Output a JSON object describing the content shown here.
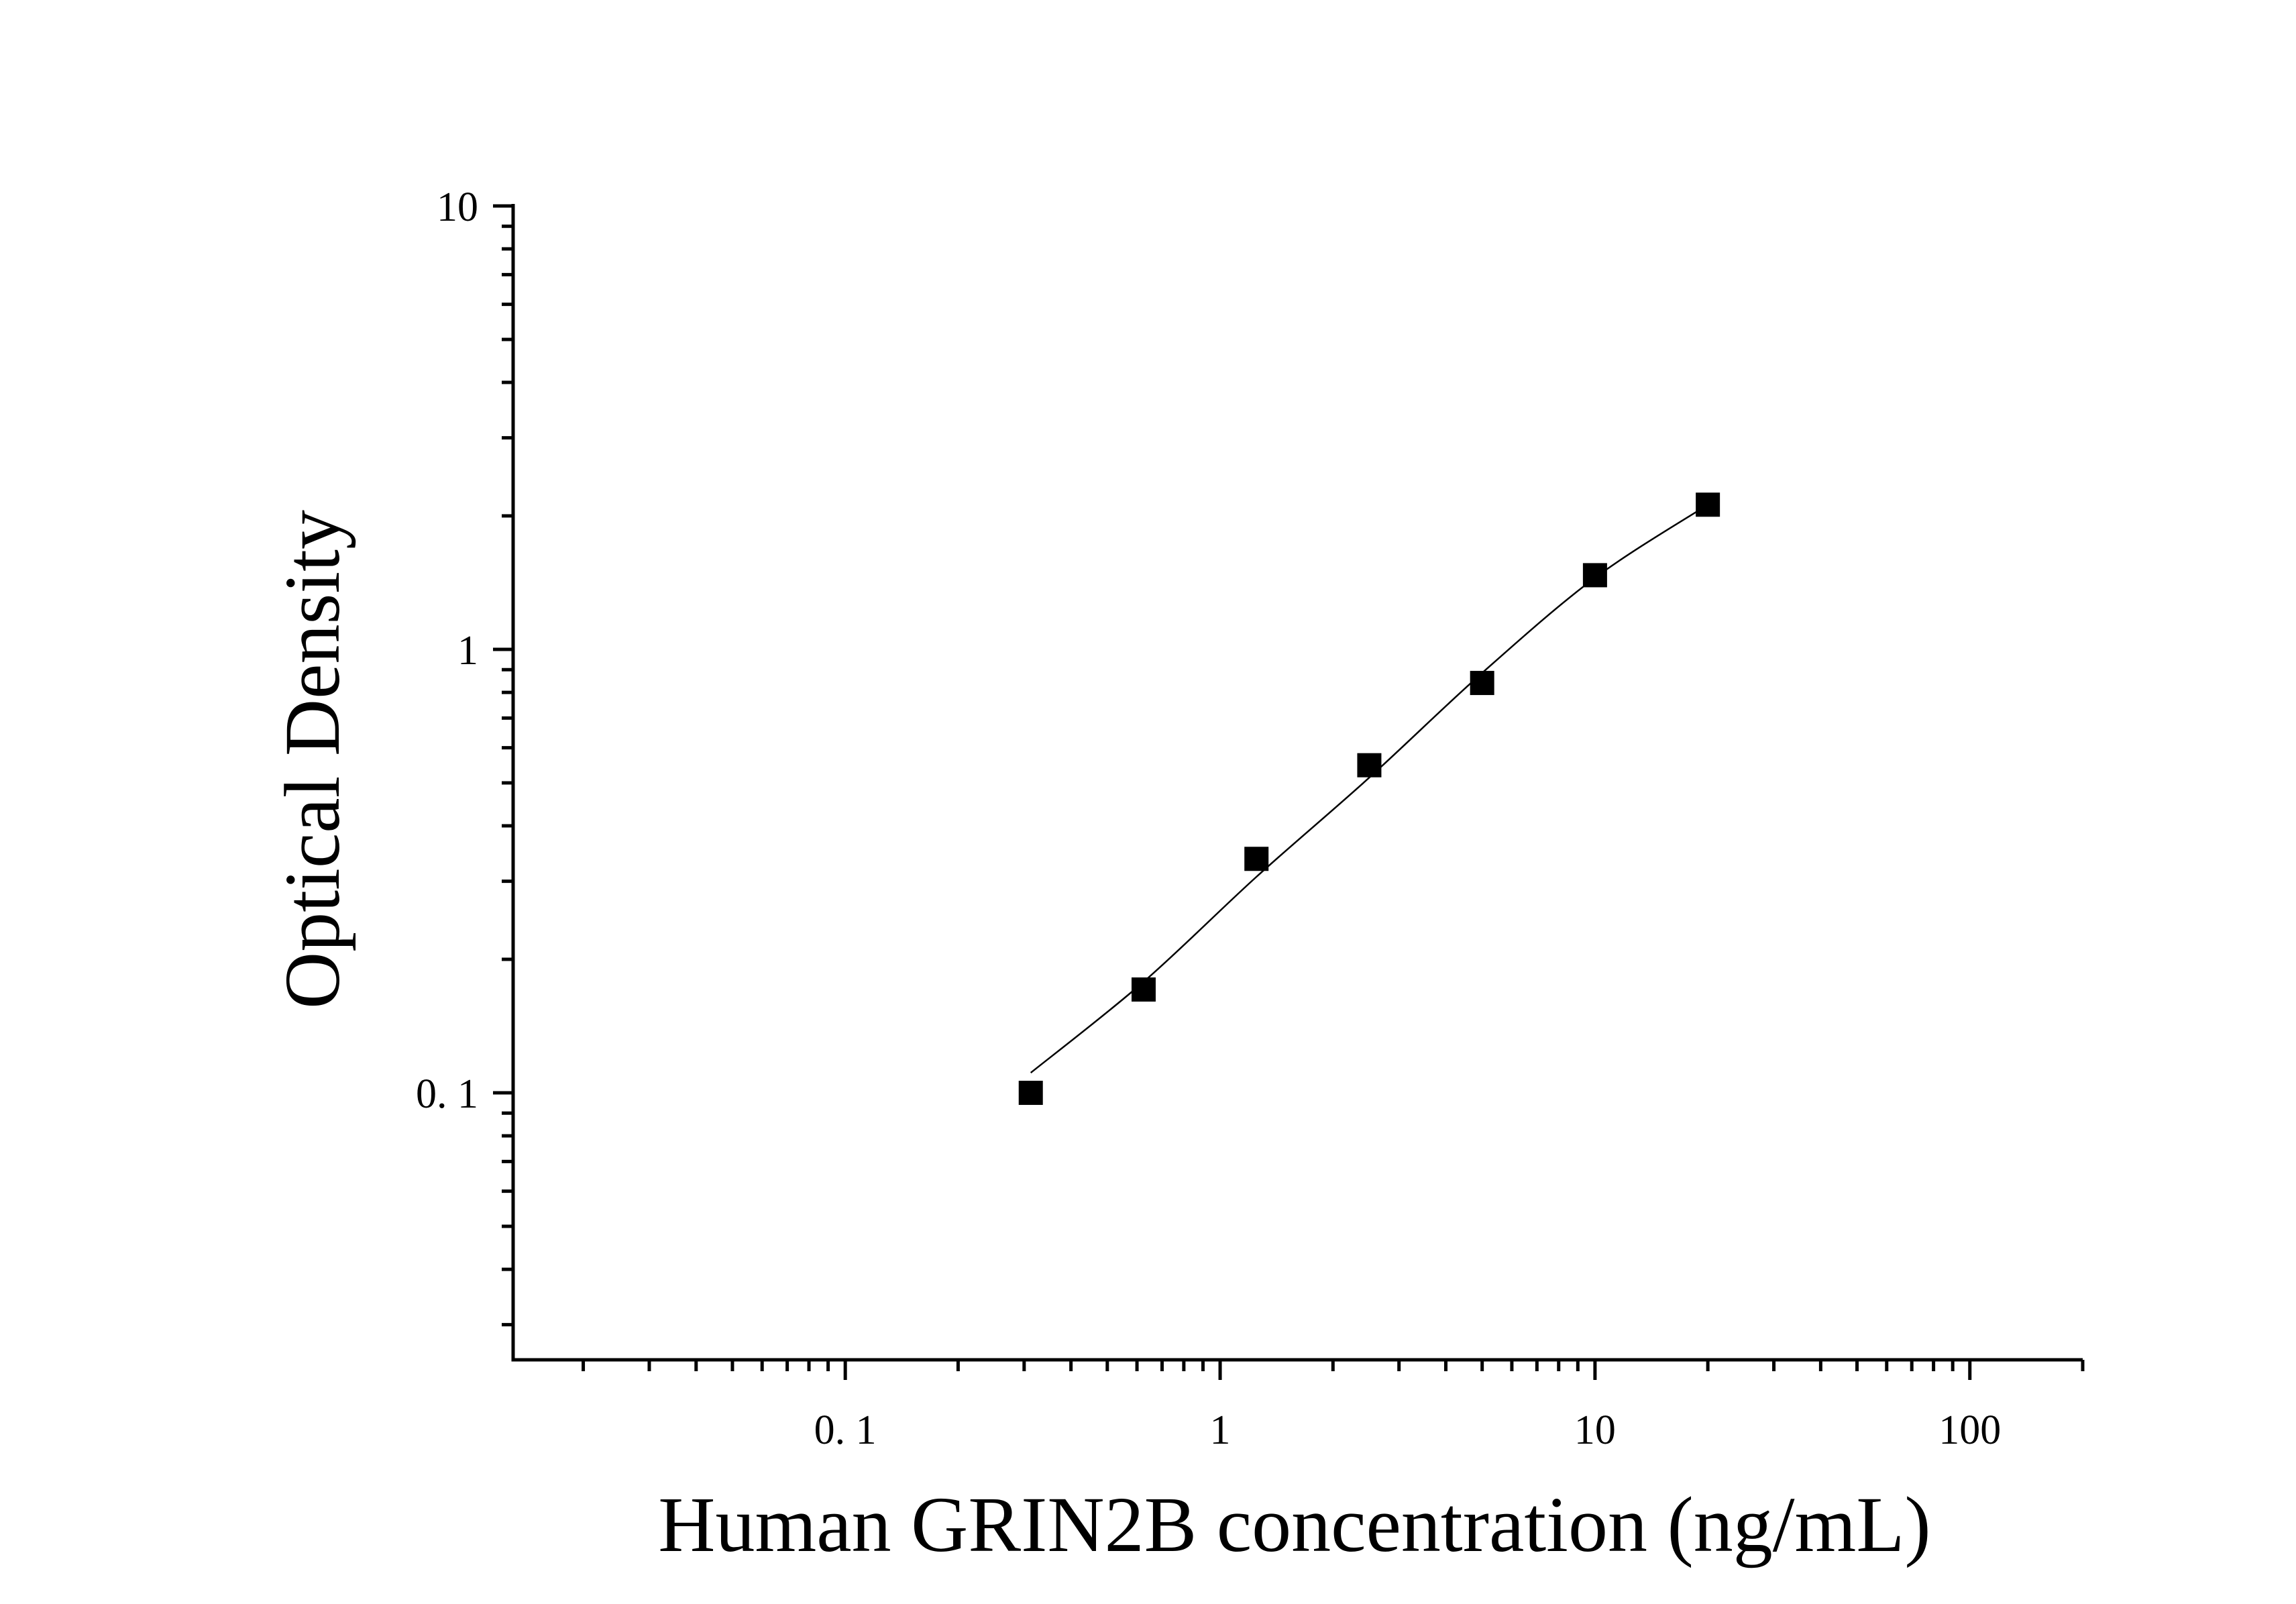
{
  "chart_data": {
    "type": "scatter",
    "xlabel": "Human GRIN2B concentration (ng/mL)",
    "ylabel": "Optical Density",
    "xscale": "log",
    "yscale": "log",
    "xlim": [
      0.013,
      200
    ],
    "ylim": [
      0.025,
      10
    ],
    "x_ticks": [
      {
        "value": 0.1,
        "label": "0. 1"
      },
      {
        "value": 1,
        "label": "1"
      },
      {
        "value": 10,
        "label": "10"
      },
      {
        "value": 100,
        "label": "100"
      }
    ],
    "y_ticks": [
      {
        "value": 0.1,
        "label": "0. 1"
      },
      {
        "value": 1,
        "label": "1"
      },
      {
        "value": 10,
        "label": "10"
      }
    ],
    "grid": false,
    "legend": "none",
    "marker": "square",
    "color": "#000000",
    "series": [
      {
        "x": [
          0.3125,
          0.625,
          1.25,
          2.5,
          5,
          10,
          20
        ],
        "y": [
          0.1,
          0.171,
          0.337,
          0.548,
          0.84,
          1.47,
          2.12
        ]
      }
    ],
    "fit_curve": {
      "x": [
        0.3125,
        0.625,
        1.25,
        2.5,
        5,
        10,
        20
      ],
      "y": [
        0.111,
        0.178,
        0.307,
        0.514,
        0.885,
        1.45,
        2.12
      ]
    }
  }
}
